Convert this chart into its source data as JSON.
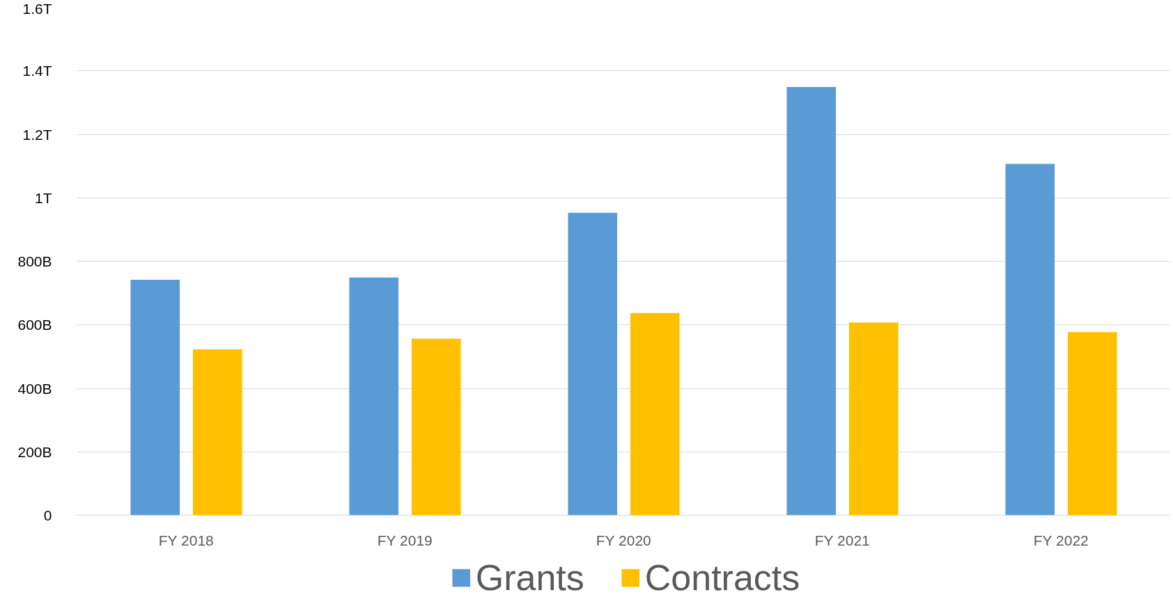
{
  "chart_data": {
    "type": "bar",
    "categories": [
      "FY 2018",
      "FY 2019",
      "FY 2020",
      "FY 2021",
      "FY 2022"
    ],
    "series": [
      {
        "name": "Grants",
        "color": "#5b9bd5",
        "values": [
          742000000000,
          749000000000,
          953000000000,
          1349000000000,
          1107000000000
        ]
      },
      {
        "name": "Contracts",
        "color": "#ffc000",
        "values": [
          523000000000,
          556000000000,
          637000000000,
          607000000000,
          577000000000
        ]
      }
    ],
    "ylim": [
      0,
      1600000000000
    ],
    "yticks": [
      0,
      {
        "value": 200000000000,
        "label": "200B"
      },
      {
        "value": 400000000000,
        "label": "400B"
      },
      {
        "value": 600000000000,
        "label": "600B"
      },
      {
        "value": 800000000000,
        "label": "800B"
      },
      {
        "value": 1000000000000,
        "label": "1T"
      },
      {
        "value": 1200000000000,
        "label": "1.2T"
      },
      {
        "value": 1400000000000,
        "label": "1.4T"
      },
      {
        "value": 1600000000000,
        "label": "1.6T"
      }
    ],
    "grid": "y",
    "legend": "bottom"
  }
}
